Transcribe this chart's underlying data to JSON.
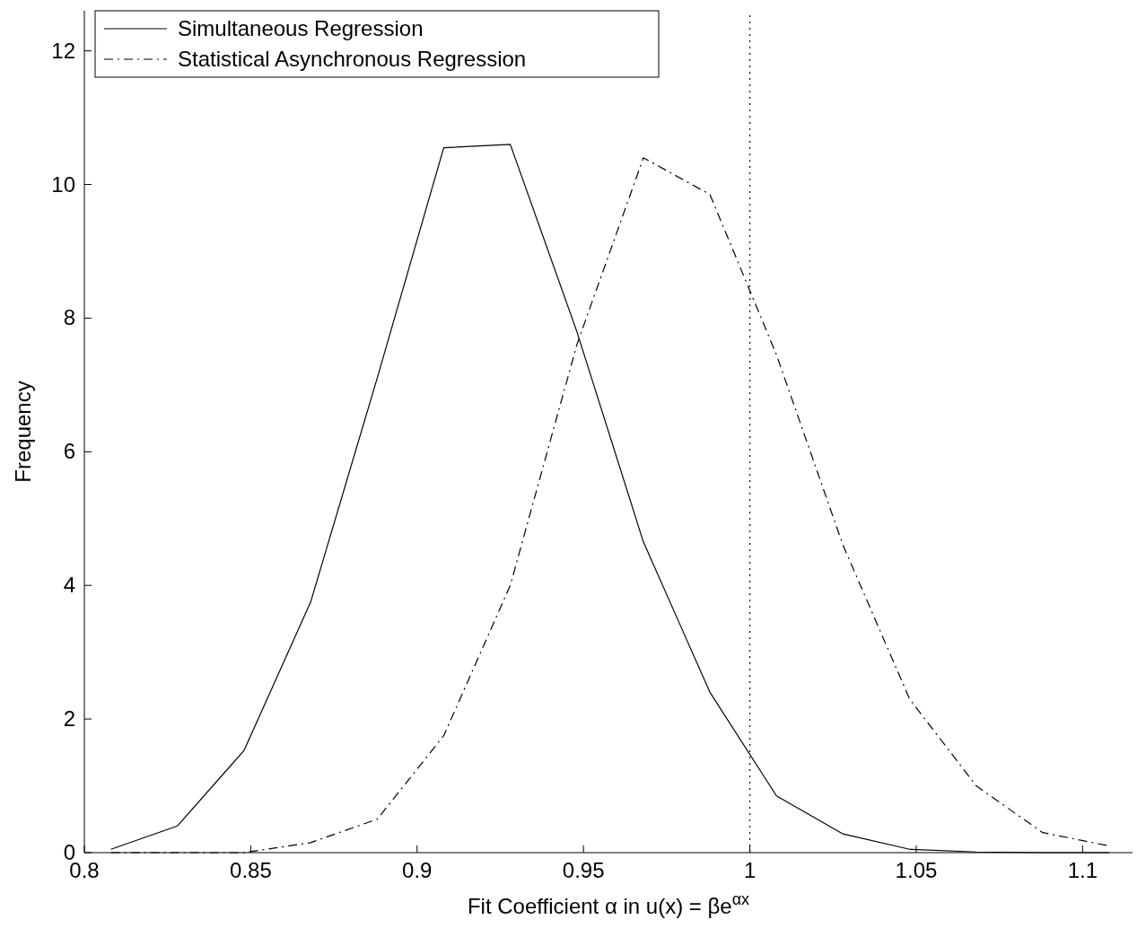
{
  "chart_data": {
    "type": "line",
    "xlabel": "Fit Coefficient α in u(x) = βe$^{αx}$",
    "ylabel": "Frequency",
    "x": [
      0.808,
      0.828,
      0.848,
      0.868,
      0.888,
      0.908,
      0.928,
      0.948,
      0.968,
      0.988,
      1.008,
      1.028,
      1.048,
      1.068,
      1.088,
      1.108
    ],
    "series": [
      {
        "name": "Simultaneous Regression",
        "color": "#000000",
        "line_style": "solid",
        "values": [
          0.05,
          0.4,
          1.53,
          3.75,
          7.1,
          10.55,
          10.6,
          7.8,
          4.65,
          2.4,
          0.85,
          0.28,
          0.05,
          0.01,
          0,
          0
        ]
      },
      {
        "name": "Statistical Asynchronous Regression",
        "color": "#000000",
        "line_style": "dashdot",
        "values": [
          0,
          0,
          0,
          0.15,
          0.5,
          1.75,
          4.0,
          7.6,
          10.4,
          9.85,
          7.45,
          4.6,
          2.3,
          1.0,
          0.3,
          0.1
        ]
      }
    ],
    "xlim": [
      0.8,
      1.115
    ],
    "xticks": [
      0.8,
      0.85,
      0.9,
      0.95,
      1,
      1.05,
      1.1
    ],
    "ylim": [
      0,
      12.6
    ],
    "yticks": [
      0,
      2,
      4,
      6,
      8,
      10,
      12
    ],
    "ref_lines": [
      {
        "axis": "x",
        "value": 1,
        "color": "#000000",
        "line_style": "dotted"
      }
    ],
    "grid": false,
    "legend": "top left",
    "marker": "none"
  }
}
